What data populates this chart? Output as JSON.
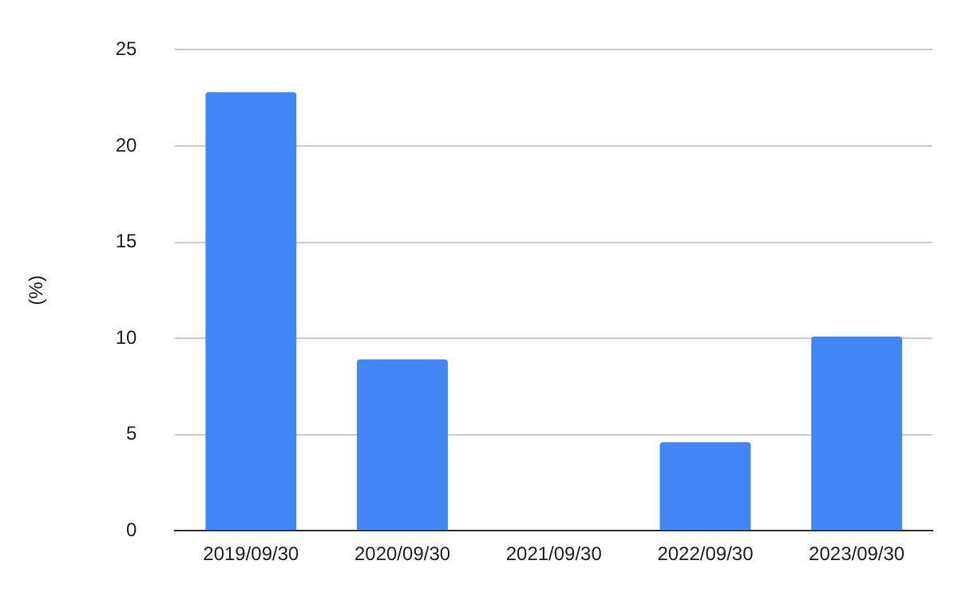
{
  "chart_data": {
    "type": "bar",
    "ylabel": "(%)",
    "categories": [
      "2019/09/30",
      "2020/09/30",
      "2021/09/30",
      "2022/09/30",
      "2023/09/30"
    ],
    "values": [
      22.8,
      8.9,
      null,
      4.6,
      10.1
    ],
    "color": "#4285f4",
    "ylim": [
      0,
      25
    ],
    "yticks": [
      0,
      5,
      10,
      15,
      20,
      25
    ],
    "grid": "y",
    "legend": false
  }
}
